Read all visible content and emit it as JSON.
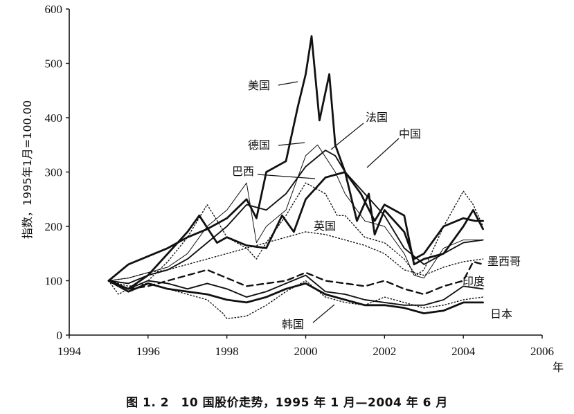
{
  "caption": "图 1. 2　10 国股价走势，1995 年 1 月—2004 年 6 月",
  "chart_data": {
    "type": "line",
    "xlabel": "年",
    "ylabel": "指数，1995年1月=100.00",
    "xlim": [
      1994,
      2006
    ],
    "ylim": [
      0,
      600
    ],
    "xticks": [
      1994,
      1996,
      1998,
      2000,
      2002,
      2004,
      2006
    ],
    "yticks": [
      0,
      100,
      200,
      300,
      400,
      500,
      600
    ],
    "grid": false,
    "series": [
      {
        "name": "美国",
        "style": "thick",
        "x": [
          1995.0,
          1995.5,
          1996.0,
          1996.5,
          1997.0,
          1997.5,
          1998.0,
          1998.5,
          1998.75,
          1999.0,
          1999.5,
          1999.8,
          2000.0,
          2000.15,
          2000.35,
          2000.6,
          2000.75,
          2001.0,
          2001.3,
          2001.6,
          2001.75,
          2002.0,
          2002.5,
          2002.75,
          2003.0,
          2003.5,
          2004.0,
          2004.3,
          2004.5
        ],
        "y": [
          100,
          130,
          145,
          160,
          180,
          195,
          215,
          250,
          215,
          300,
          320,
          420,
          480,
          550,
          395,
          480,
          350,
          300,
          210,
          260,
          185,
          230,
          190,
          140,
          150,
          200,
          215,
          210,
          210
        ]
      },
      {
        "name": "德国",
        "style": "thin",
        "x": [
          1995.0,
          1995.5,
          1996.0,
          1996.5,
          1997.0,
          1997.5,
          1998.0,
          1998.5,
          1998.75,
          1999.0,
          1999.5,
          2000.0,
          2000.3,
          2000.75,
          2001.0,
          2001.5,
          2002.0,
          2002.5,
          2002.75,
          2003.0,
          2003.5,
          2004.0,
          2004.5
        ],
        "y": [
          100,
          105,
          115,
          125,
          150,
          200,
          230,
          280,
          170,
          200,
          230,
          330,
          350,
          300,
          260,
          210,
          200,
          150,
          110,
          105,
          160,
          175,
          175
        ]
      },
      {
        "name": "法国",
        "style": "medium",
        "x": [
          1995.0,
          1995.5,
          1996.0,
          1996.5,
          1997.0,
          1997.5,
          1998.0,
          1998.5,
          1999.0,
          1999.5,
          2000.0,
          2000.5,
          2000.75,
          2001.0,
          2001.5,
          2002.0,
          2002.5,
          2003.0,
          2003.5,
          2004.0,
          2004.5
        ],
        "y": [
          100,
          95,
          110,
          120,
          140,
          170,
          200,
          240,
          230,
          260,
          310,
          340,
          330,
          300,
          260,
          220,
          160,
          130,
          150,
          170,
          175
        ]
      },
      {
        "name": "中国",
        "style": "thick",
        "x": [
          1995.0,
          1995.5,
          1996.0,
          1996.5,
          1997.0,
          1997.3,
          1997.75,
          1998.0,
          1998.5,
          1999.0,
          1999.4,
          1999.7,
          2000.0,
          2000.5,
          2001.0,
          2001.4,
          2001.75,
          2002.0,
          2002.5,
          2002.75,
          2003.0,
          2003.5,
          2004.0,
          2004.25,
          2004.5
        ],
        "y": [
          100,
          85,
          110,
          150,
          190,
          220,
          170,
          180,
          165,
          160,
          220,
          190,
          250,
          290,
          300,
          260,
          210,
          240,
          220,
          130,
          140,
          150,
          200,
          230,
          195
        ]
      },
      {
        "name": "巴西",
        "style": "dotted",
        "x": [
          1995.0,
          1995.25,
          1995.5,
          1996.0,
          1996.5,
          1997.0,
          1997.5,
          1997.8,
          1998.0,
          1998.5,
          1998.75,
          1999.0,
          1999.5,
          2000.0,
          2000.5,
          2000.8,
          2001.0,
          2001.5,
          2002.0,
          2002.5,
          2002.8,
          2003.0,
          2003.5,
          2004.0,
          2004.25,
          2004.5
        ],
        "y": [
          100,
          75,
          85,
          100,
          135,
          180,
          240,
          205,
          180,
          160,
          140,
          170,
          220,
          280,
          260,
          220,
          220,
          180,
          170,
          140,
          110,
          120,
          200,
          265,
          240,
          200
        ]
      },
      {
        "name": "英国",
        "style": "dotted",
        "x": [
          1995.0,
          1995.5,
          1996.0,
          1996.5,
          1997.0,
          1997.5,
          1998.0,
          1998.5,
          1999.0,
          1999.5,
          2000.0,
          2000.5,
          2001.0,
          2001.5,
          2002.0,
          2002.5,
          2003.0,
          2003.5,
          2004.0,
          2004.5
        ],
        "y": [
          100,
          105,
          115,
          120,
          130,
          140,
          150,
          160,
          170,
          180,
          190,
          185,
          175,
          165,
          150,
          120,
          110,
          125,
          135,
          140
        ]
      },
      {
        "name": "墨西哥",
        "style": "dashed",
        "x": [
          1995.0,
          1995.5,
          1996.0,
          1996.5,
          1997.0,
          1997.5,
          1998.0,
          1998.5,
          1999.0,
          1999.5,
          2000.0,
          2000.5,
          2001.0,
          2001.5,
          2002.0,
          2002.5,
          2003.0,
          2003.5,
          2004.0,
          2004.25,
          2004.5
        ],
        "y": [
          100,
          85,
          90,
          100,
          110,
          120,
          105,
          90,
          95,
          100,
          115,
          100,
          95,
          90,
          100,
          85,
          75,
          90,
          100,
          135,
          130
        ]
      },
      {
        "name": "印度",
        "style": "medium",
        "x": [
          1995.0,
          1995.5,
          1996.0,
          1996.5,
          1997.0,
          1997.5,
          1998.0,
          1998.5,
          1999.0,
          1999.5,
          2000.0,
          2000.5,
          2001.0,
          2001.5,
          2002.0,
          2002.5,
          2003.0,
          2003.5,
          2004.0,
          2004.5
        ],
        "y": [
          100,
          85,
          100,
          95,
          85,
          95,
          85,
          70,
          80,
          95,
          110,
          80,
          75,
          65,
          60,
          55,
          55,
          65,
          90,
          85
        ]
      },
      {
        "name": "日本",
        "style": "thick",
        "x": [
          1995.0,
          1995.5,
          1996.0,
          1996.5,
          1997.0,
          1997.5,
          1998.0,
          1998.5,
          1999.0,
          1999.5,
          2000.0,
          2000.5,
          2001.0,
          2001.5,
          2002.0,
          2002.5,
          2003.0,
          2003.5,
          2004.0,
          2004.5
        ],
        "y": [
          100,
          80,
          95,
          85,
          80,
          75,
          65,
          60,
          70,
          85,
          95,
          75,
          65,
          55,
          55,
          50,
          40,
          45,
          60,
          60
        ]
      },
      {
        "name": "韩国",
        "style": "dotted",
        "x": [
          1995.0,
          1995.5,
          1996.0,
          1996.5,
          1997.0,
          1997.5,
          1997.9,
          1998.0,
          1998.5,
          1999.0,
          1999.5,
          2000.0,
          2000.5,
          2001.0,
          2001.5,
          2002.0,
          2002.5,
          2003.0,
          2003.5,
          2004.0,
          2004.5
        ],
        "y": [
          100,
          90,
          95,
          85,
          75,
          65,
          40,
          30,
          35,
          55,
          80,
          100,
          70,
          60,
          55,
          70,
          60,
          50,
          55,
          65,
          70
        ]
      }
    ],
    "annotations": [
      {
        "text": "美国",
        "series": "美国"
      },
      {
        "text": "德国",
        "series": "德国"
      },
      {
        "text": "法国",
        "series": "法国"
      },
      {
        "text": "中国",
        "series": "中国"
      },
      {
        "text": "巴西",
        "series": "巴西"
      },
      {
        "text": "英国",
        "series": "英国"
      },
      {
        "text": "墨西哥",
        "series": "墨西哥"
      },
      {
        "text": "印度",
        "series": "印度"
      },
      {
        "text": "日本",
        "series": "日本"
      },
      {
        "text": "韩国",
        "series": "韩国"
      }
    ]
  }
}
